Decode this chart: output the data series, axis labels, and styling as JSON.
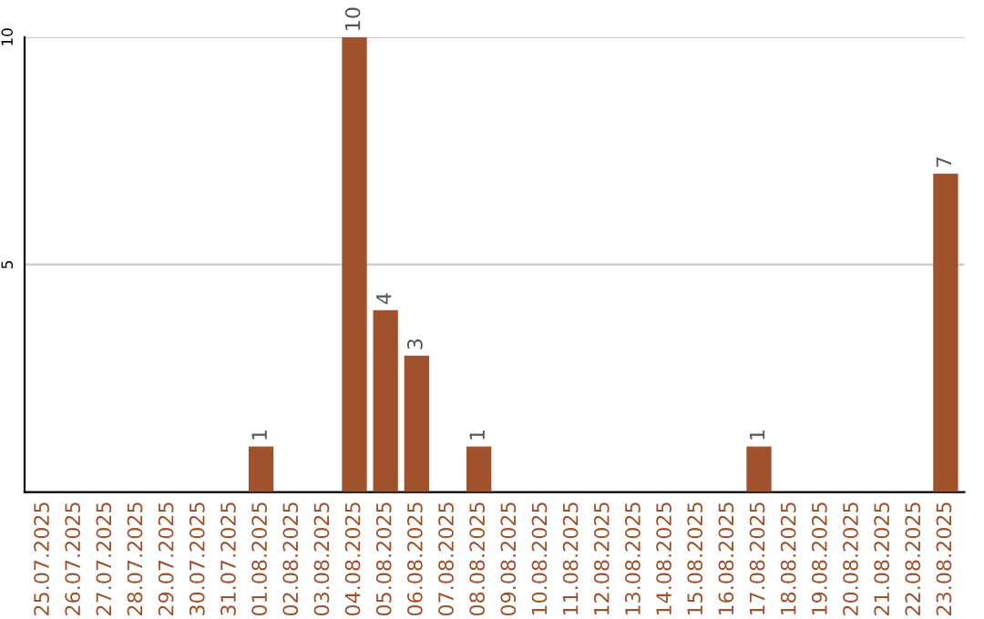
{
  "chart_data": {
    "type": "bar",
    "categories": [
      "25.07.2025",
      "26.07.2025",
      "27.07.2025",
      "28.07.2025",
      "29.07.2025",
      "30.07.2025",
      "31.07.2025",
      "01.08.2025",
      "02.08.2025",
      "03.08.2025",
      "04.08.2025",
      "05.08.2025",
      "06.08.2025",
      "07.08.2025",
      "08.08.2025",
      "09.08.2025",
      "10.08.2025",
      "11.08.2025",
      "12.08.2025",
      "13.08.2025",
      "14.08.2025",
      "15.08.2025",
      "16.08.2025",
      "17.08.2025",
      "18.08.2025",
      "19.08.2025",
      "20.08.2025",
      "21.08.2025",
      "22.08.2025",
      "23.08.2025"
    ],
    "values": [
      0,
      0,
      0,
      0,
      0,
      0,
      0,
      1,
      0,
      0,
      10,
      4,
      3,
      0,
      1,
      0,
      0,
      0,
      0,
      0,
      0,
      0,
      0,
      1,
      0,
      0,
      0,
      0,
      0,
      7
    ],
    "value_labels": [
      null,
      null,
      null,
      null,
      null,
      null,
      null,
      "1",
      null,
      null,
      "10",
      "4",
      "3",
      null,
      "1",
      null,
      null,
      null,
      null,
      null,
      null,
      null,
      null,
      "1",
      null,
      null,
      null,
      null,
      null,
      "7"
    ],
    "color": "#a0522d",
    "ylim": [
      0,
      10
    ],
    "yticks": [
      5,
      10
    ],
    "grid": "y"
  }
}
